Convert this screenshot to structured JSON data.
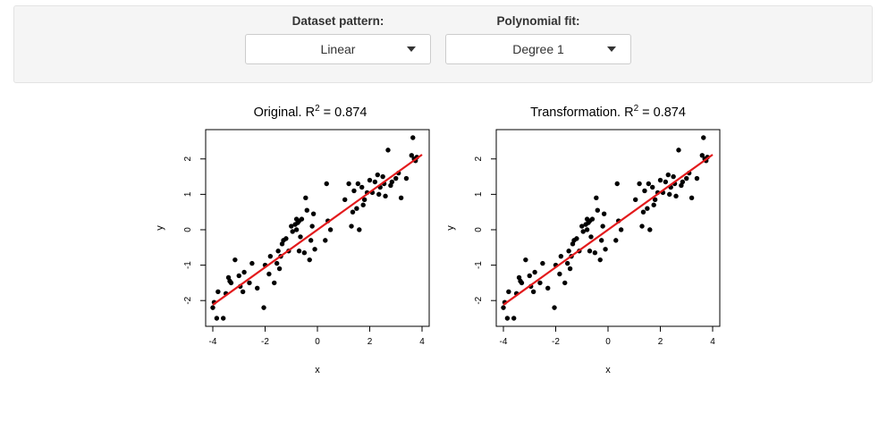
{
  "controls": {
    "dataset": {
      "label": "Dataset pattern:",
      "value": "Linear"
    },
    "fit": {
      "label": "Polynomial fit:",
      "value": "Degree 1"
    }
  },
  "colors": {
    "points": "#000000",
    "fit_line": "#e31a1c"
  },
  "chart_data": [
    {
      "type": "scatter",
      "title": "Original. R",
      "title_suffix": " = 0.874",
      "title_sup": "2",
      "xlabel": "x",
      "ylabel": "y",
      "xlim": [
        -4,
        4
      ],
      "ylim": [
        -2.5,
        2.6
      ],
      "xticks": [
        -4,
        -2,
        0,
        2,
        4
      ],
      "yticks": [
        -2,
        -1,
        0,
        1,
        2
      ],
      "fit": {
        "intercept": 0.0,
        "slope": 0.53
      },
      "x": [
        -4.0,
        -3.95,
        -3.85,
        -3.8,
        -3.6,
        -3.5,
        -3.4,
        -3.35,
        -3.3,
        -3.15,
        -3.0,
        -2.95,
        -2.85,
        -2.8,
        -2.6,
        -2.5,
        -2.3,
        -2.05,
        -2.0,
        -1.85,
        -1.8,
        -1.65,
        -1.55,
        -1.5,
        -1.45,
        -1.4,
        -1.35,
        -1.3,
        -1.2,
        -1.1,
        -1.0,
        -0.95,
        -0.85,
        -0.8,
        -0.8,
        -0.75,
        -0.7,
        -0.7,
        -0.65,
        -0.6,
        -0.5,
        -0.45,
        -0.4,
        -0.3,
        -0.25,
        -0.2,
        -0.15,
        -0.1,
        0.3,
        0.35,
        0.4,
        0.5,
        1.05,
        1.2,
        1.3,
        1.35,
        1.4,
        1.5,
        1.55,
        1.6,
        1.7,
        1.75,
        1.8,
        1.9,
        2.0,
        2.1,
        2.2,
        2.3,
        2.35,
        2.4,
        2.5,
        2.55,
        2.6,
        2.7,
        2.8,
        2.85,
        3.0,
        3.1,
        3.2,
        3.4,
        3.6,
        3.65,
        3.7,
        3.75,
        3.8
      ],
      "y": [
        -2.2,
        -2.05,
        -2.5,
        -1.75,
        -2.5,
        -1.8,
        -1.35,
        -1.45,
        -1.5,
        -0.85,
        -1.3,
        -1.6,
        -1.75,
        -1.2,
        -1.5,
        -0.95,
        -1.65,
        -2.2,
        -1.0,
        -1.25,
        -0.75,
        -1.5,
        -0.95,
        -0.6,
        -1.1,
        -0.75,
        -0.4,
        -0.3,
        -0.25,
        -0.6,
        0.1,
        -0.05,
        0.15,
        0.3,
        0.0,
        0.2,
        -0.6,
        0.25,
        -0.2,
        0.3,
        -0.65,
        0.9,
        0.55,
        -0.85,
        -0.3,
        0.1,
        0.45,
        -0.55,
        -0.3,
        1.3,
        0.25,
        0.0,
        0.85,
        1.3,
        0.1,
        0.5,
        1.1,
        0.6,
        1.3,
        0.0,
        1.2,
        0.7,
        0.85,
        1.05,
        1.4,
        1.05,
        1.35,
        1.55,
        1.0,
        1.2,
        1.5,
        1.3,
        0.95,
        2.25,
        1.25,
        1.35,
        1.45,
        1.6,
        0.9,
        1.45,
        2.1,
        2.6,
        2.0,
        1.95,
        2.05
      ]
    },
    {
      "type": "scatter",
      "title": "Transformation. R",
      "title_suffix": " = 0.874",
      "title_sup": "2",
      "xlabel": "x",
      "ylabel": "y",
      "xlim": [
        -4,
        4
      ],
      "ylim": [
        -2.5,
        2.6
      ],
      "xticks": [
        -4,
        -2,
        0,
        2,
        4
      ],
      "yticks": [
        -2,
        -1,
        0,
        1,
        2
      ],
      "fit": {
        "intercept": 0.0,
        "slope": 0.53
      },
      "x": [
        -4.0,
        -3.95,
        -3.85,
        -3.8,
        -3.6,
        -3.5,
        -3.4,
        -3.35,
        -3.3,
        -3.15,
        -3.0,
        -2.95,
        -2.85,
        -2.8,
        -2.6,
        -2.5,
        -2.3,
        -2.05,
        -2.0,
        -1.85,
        -1.8,
        -1.65,
        -1.55,
        -1.5,
        -1.45,
        -1.4,
        -1.35,
        -1.3,
        -1.2,
        -1.1,
        -1.0,
        -0.95,
        -0.85,
        -0.8,
        -0.8,
        -0.75,
        -0.7,
        -0.7,
        -0.65,
        -0.6,
        -0.5,
        -0.45,
        -0.4,
        -0.3,
        -0.25,
        -0.2,
        -0.15,
        -0.1,
        0.3,
        0.35,
        0.4,
        0.5,
        1.05,
        1.2,
        1.3,
        1.35,
        1.4,
        1.5,
        1.55,
        1.6,
        1.7,
        1.75,
        1.8,
        1.9,
        2.0,
        2.1,
        2.2,
        2.3,
        2.35,
        2.4,
        2.5,
        2.55,
        2.6,
        2.7,
        2.8,
        2.85,
        3.0,
        3.1,
        3.2,
        3.4,
        3.6,
        3.65,
        3.7,
        3.75,
        3.8
      ],
      "y": [
        -2.2,
        -2.05,
        -2.5,
        -1.75,
        -2.5,
        -1.8,
        -1.35,
        -1.45,
        -1.5,
        -0.85,
        -1.3,
        -1.6,
        -1.75,
        -1.2,
        -1.5,
        -0.95,
        -1.65,
        -2.2,
        -1.0,
        -1.25,
        -0.75,
        -1.5,
        -0.95,
        -0.6,
        -1.1,
        -0.75,
        -0.4,
        -0.3,
        -0.25,
        -0.6,
        0.1,
        -0.05,
        0.15,
        0.3,
        0.0,
        0.2,
        -0.6,
        0.25,
        -0.2,
        0.3,
        -0.65,
        0.9,
        0.55,
        -0.85,
        -0.3,
        0.1,
        0.45,
        -0.55,
        -0.3,
        1.3,
        0.25,
        0.0,
        0.85,
        1.3,
        0.1,
        0.5,
        1.1,
        0.6,
        1.3,
        0.0,
        1.2,
        0.7,
        0.85,
        1.05,
        1.4,
        1.05,
        1.35,
        1.55,
        1.0,
        1.2,
        1.5,
        1.3,
        0.95,
        2.25,
        1.25,
        1.35,
        1.45,
        1.6,
        0.9,
        1.45,
        2.1,
        2.6,
        2.0,
        1.95,
        2.05
      ]
    }
  ]
}
